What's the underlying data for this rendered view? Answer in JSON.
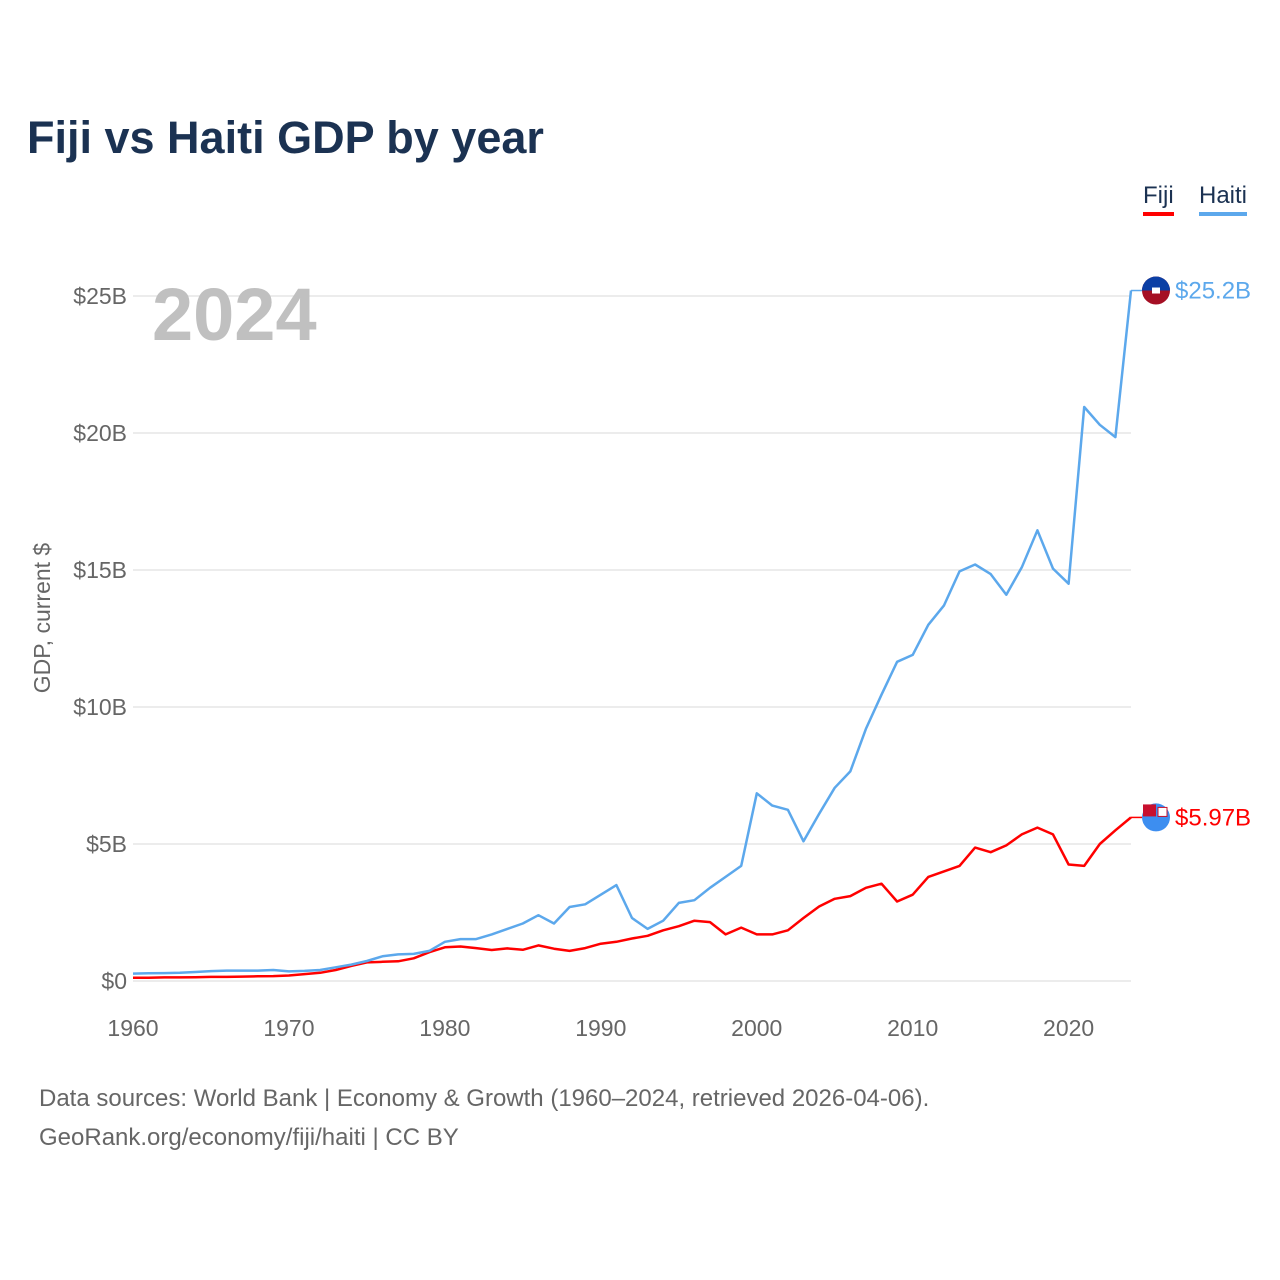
{
  "chart_data": {
    "type": "line",
    "title": "Fiji vs Haiti GDP by year",
    "ylabel": "GDP, current $",
    "xlabel": "",
    "year_label": "2024",
    "xlim": [
      1960,
      2024
    ],
    "ylim": [
      0,
      25
    ],
    "y_unit": "billion USD",
    "grid": true,
    "legend_position": "top-right",
    "x_ticks": [
      1960,
      1970,
      1980,
      1990,
      2000,
      2010,
      2020
    ],
    "x_tick_labels": [
      "1960",
      "1970",
      "1980",
      "1990",
      "2000",
      "2010",
      "2020"
    ],
    "y_ticks": [
      0,
      5,
      10,
      15,
      20,
      25
    ],
    "y_tick_labels": [
      "$0",
      "$5B",
      "$10B",
      "$15B",
      "$20B",
      "$25B"
    ],
    "x": [
      1960,
      1961,
      1962,
      1963,
      1964,
      1965,
      1966,
      1967,
      1968,
      1969,
      1970,
      1971,
      1972,
      1973,
      1974,
      1975,
      1976,
      1977,
      1978,
      1979,
      1980,
      1981,
      1982,
      1983,
      1984,
      1985,
      1986,
      1987,
      1988,
      1989,
      1990,
      1991,
      1992,
      1993,
      1994,
      1995,
      1996,
      1997,
      1998,
      1999,
      2000,
      2001,
      2002,
      2003,
      2004,
      2005,
      2006,
      2007,
      2008,
      2009,
      2010,
      2011,
      2012,
      2013,
      2014,
      2015,
      2016,
      2017,
      2018,
      2019,
      2020,
      2021,
      2022,
      2023,
      2024
    ],
    "series": [
      {
        "name": "Fiji",
        "color": "#ff0000",
        "end_label": "$5.97B",
        "values": [
          0.12,
          0.12,
          0.13,
          0.13,
          0.14,
          0.15,
          0.15,
          0.16,
          0.17,
          0.18,
          0.2,
          0.25,
          0.3,
          0.4,
          0.55,
          0.68,
          0.7,
          0.72,
          0.83,
          1.05,
          1.23,
          1.26,
          1.2,
          1.13,
          1.19,
          1.14,
          1.3,
          1.18,
          1.1,
          1.2,
          1.36,
          1.43,
          1.55,
          1.65,
          1.85,
          2.0,
          2.2,
          2.15,
          1.7,
          1.95,
          1.7,
          1.7,
          1.85,
          2.3,
          2.72,
          3.0,
          3.1,
          3.4,
          3.55,
          2.9,
          3.15,
          3.8,
          4.0,
          4.2,
          4.87,
          4.7,
          4.95,
          5.35,
          5.6,
          5.35,
          4.25,
          4.2,
          5.0,
          5.5,
          5.97
        ]
      },
      {
        "name": "Haiti",
        "color": "#5ca8ec",
        "end_label": "$25.2B",
        "values": [
          0.27,
          0.28,
          0.29,
          0.3,
          0.33,
          0.36,
          0.38,
          0.38,
          0.38,
          0.4,
          0.35,
          0.37,
          0.4,
          0.5,
          0.6,
          0.73,
          0.9,
          0.97,
          0.99,
          1.1,
          1.43,
          1.53,
          1.53,
          1.7,
          1.9,
          2.1,
          2.4,
          2.1,
          2.7,
          2.8,
          3.15,
          3.5,
          2.3,
          1.9,
          2.2,
          2.85,
          2.95,
          3.4,
          3.8,
          4.2,
          6.85,
          6.4,
          6.25,
          5.1,
          6.1,
          7.05,
          7.65,
          9.2,
          10.45,
          11.65,
          11.9,
          13.0,
          13.7,
          14.95,
          15.2,
          14.85,
          14.1,
          15.1,
          16.45,
          15.05,
          14.5,
          20.95,
          20.3,
          19.85,
          25.2
        ]
      }
    ]
  },
  "footer": {
    "line1": "Data sources: World Bank | Economy & Growth (1960–2024, retrieved 2026-04-06).",
    "line2": "GeoRank.org/economy/fiji/haiti | CC BY"
  }
}
